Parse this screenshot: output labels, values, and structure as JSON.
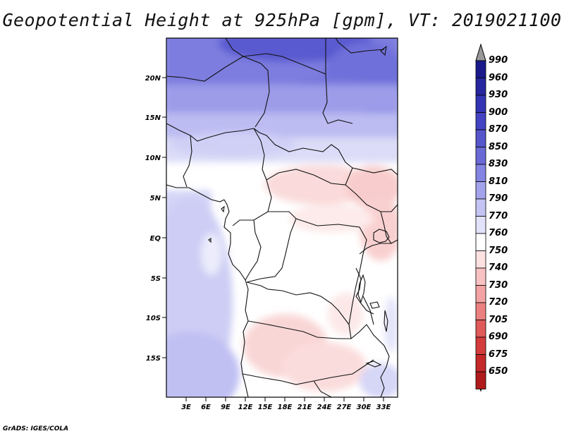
{
  "title": "Geopotential Height at 925hPa [gpm], VT: 2019021100",
  "footer": "GrADS: IGES/COLA",
  "map": {
    "lat_labels": [
      "20N",
      "15N",
      "10N",
      "5N",
      "EQ",
      "5S",
      "10S",
      "15S"
    ],
    "lon_labels": [
      "3E",
      "6E",
      "9E",
      "12E",
      "15E",
      "18E",
      "21E",
      "24E",
      "27E",
      "30E",
      "33E"
    ]
  },
  "colorbar": {
    "labels": [
      "990",
      "960",
      "930",
      "900",
      "870",
      "850",
      "830",
      "810",
      "790",
      "770",
      "760",
      "750",
      "740",
      "730",
      "720",
      "705",
      "690",
      "675",
      "650"
    ],
    "colors": [
      "#1a1a8c",
      "#2626a0",
      "#3434b4",
      "#4343c4",
      "#5555cc",
      "#6a6ad6",
      "#8484e2",
      "#a3a3ec",
      "#c4c4f4",
      "#e2e2fa",
      "#ffffff",
      "#fde1e1",
      "#f9c2c2",
      "#f3a3a3",
      "#ec8080",
      "#e05a5a",
      "#d43c3c",
      "#c42828",
      "#b01c1c"
    ],
    "cap_top": "#999999",
    "cap_bottom": "#aa1818"
  },
  "chart_data": {
    "type": "heatmap",
    "title": "Geopotential Height at 925hPa [gpm], VT: 2019021100",
    "variable": "Geopotential Height at 925hPa [gpm]",
    "valid_time": "2019021100",
    "x_ticks": [
      "3E",
      "6E",
      "9E",
      "12E",
      "15E",
      "18E",
      "21E",
      "24E",
      "27E",
      "30E",
      "33E"
    ],
    "y_ticks": [
      "20N",
      "15N",
      "10N",
      "5N",
      "EQ",
      "5S",
      "10S",
      "15S"
    ],
    "color_levels": [
      990,
      960,
      930,
      900,
      870,
      850,
      830,
      810,
      790,
      770,
      760,
      750,
      740,
      730,
      720,
      705,
      690,
      675,
      650
    ]
  }
}
